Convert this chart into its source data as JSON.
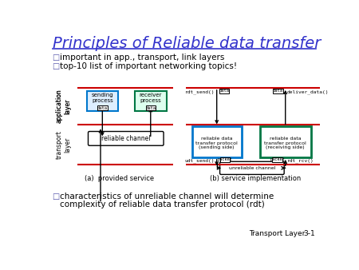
{
  "title": "Principles of Reliable data transfer",
  "title_color": "#3333cc",
  "bullets": [
    "important in app., transport, link layers",
    "top-10 list of important networking topics!"
  ],
  "bullet_color": "#000000",
  "bullet_marker_color": "#5555aa",
  "footer_bullet_line1": "characteristics of unreliable channel will determine",
  "footer_bullet_line2": "complexity of reliable data transfer protocol (rdt)",
  "footer_label": "Transport Layer",
  "footer_num": "3-1",
  "bg_color": "#ffffff",
  "diagram_label_a": "(a)  provided service",
  "diagram_label_b": "(b) service implementation",
  "app_layer_text": "application\nlayer",
  "transport_layer_text": "transport\nlayer",
  "red_line_color": "#cc0000",
  "sending_box_edge": "#0077cc",
  "receiver_box_edge": "#007744",
  "sending_box_face": "#ddeeff",
  "receiver_box_face": "#ddffee",
  "proto_send_edge": "#0077cc",
  "proto_recv_edge": "#007744"
}
